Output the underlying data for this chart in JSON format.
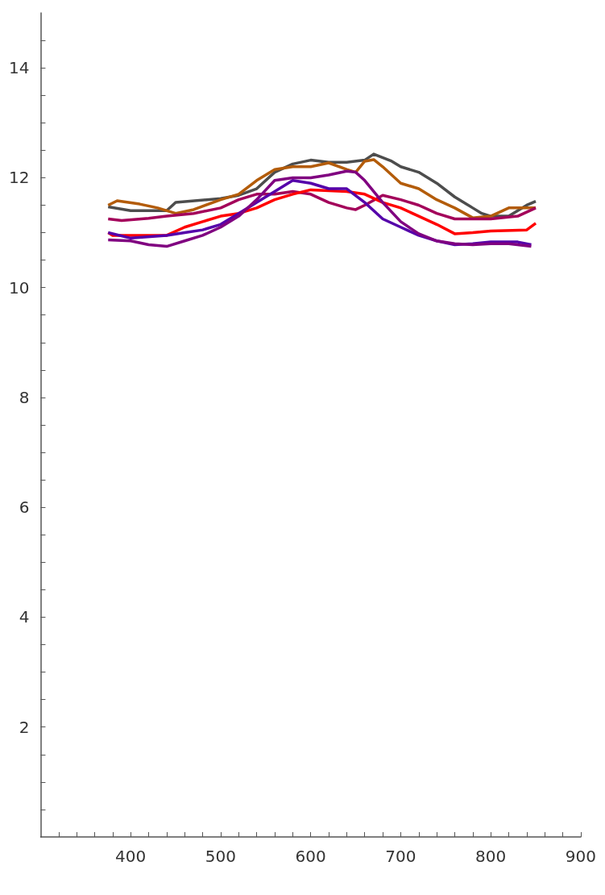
{
  "chart_data": {
    "type": "line",
    "xlim": [
      300,
      900
    ],
    "ylim": [
      0,
      15
    ],
    "xticks": [
      {
        "value": 320,
        "label": null
      },
      {
        "value": 340,
        "label": null
      },
      {
        "value": 360,
        "label": null
      },
      {
        "value": 380,
        "label": null
      },
      400,
      {
        "value": 420,
        "label": null
      },
      {
        "value": 440,
        "label": null
      },
      {
        "value": 460,
        "label": null
      },
      {
        "value": 480,
        "label": null
      },
      500,
      {
        "value": 520,
        "label": null
      },
      {
        "value": 540,
        "label": null
      },
      {
        "value": 560,
        "label": null
      },
      {
        "value": 580,
        "label": null
      },
      600,
      {
        "value": 620,
        "label": null
      },
      {
        "value": 640,
        "label": null
      },
      {
        "value": 660,
        "label": null
      },
      {
        "value": 680,
        "label": null
      },
      700,
      {
        "value": 720,
        "label": null
      },
      {
        "value": 740,
        "label": null
      },
      {
        "value": 760,
        "label": null
      },
      {
        "value": 780,
        "label": null
      },
      800,
      {
        "value": 820,
        "label": null
      },
      {
        "value": 840,
        "label": null
      },
      {
        "value": 860,
        "label": null
      },
      {
        "value": 880,
        "label": null
      },
      900
    ],
    "yticks": [
      {
        "value": 0.5,
        "label": null
      },
      {
        "value": 1,
        "label": null
      },
      {
        "value": 1.5,
        "label": null
      },
      2,
      {
        "value": 2.5,
        "label": null
      },
      {
        "value": 3,
        "label": null
      },
      {
        "value": 3.5,
        "label": null
      },
      4,
      {
        "value": 4.5,
        "label": null
      },
      {
        "value": 5,
        "label": null
      },
      {
        "value": 5.5,
        "label": null
      },
      6,
      {
        "value": 6.5,
        "label": null
      },
      {
        "value": 7,
        "label": null
      },
      {
        "value": 7.5,
        "label": null
      },
      8,
      {
        "value": 8.5,
        "label": null
      },
      {
        "value": 9,
        "label": null
      },
      {
        "value": 9.5,
        "label": null
      },
      10,
      {
        "value": 10.5,
        "label": null
      },
      {
        "value": 11,
        "label": null
      },
      {
        "value": 11.5,
        "label": null
      },
      12,
      {
        "value": 12.5,
        "label": null
      },
      {
        "value": 13,
        "label": null
      },
      {
        "value": 13.5,
        "label": null
      },
      14,
      {
        "value": 14.5,
        "label": null
      }
    ],
    "grid": false,
    "marker": "none",
    "line_style": "solid",
    "series": [
      {
        "color": "#4d4d4d",
        "x": [
          375,
          400,
          440,
          450,
          500,
          520,
          540,
          560,
          580,
          600,
          620,
          640,
          660,
          670,
          690,
          700,
          720,
          740,
          760,
          780,
          790,
          800,
          820,
          840,
          850
        ],
        "values": [
          11.47,
          11.4,
          11.4,
          11.55,
          11.62,
          11.68,
          11.8,
          12.1,
          12.25,
          12.32,
          12.28,
          12.28,
          12.32,
          12.43,
          12.3,
          12.2,
          12.1,
          11.9,
          11.65,
          11.45,
          11.35,
          11.3,
          11.3,
          11.5,
          11.57
        ]
      },
      {
        "color": "#b35c0a",
        "x": [
          375,
          385,
          410,
          430,
          450,
          470,
          500,
          520,
          540,
          560,
          580,
          600,
          620,
          640,
          650,
          660,
          670,
          680,
          700,
          720,
          740,
          760,
          780,
          800,
          820,
          850
        ],
        "values": [
          11.5,
          11.58,
          11.52,
          11.45,
          11.35,
          11.42,
          11.6,
          11.7,
          11.95,
          12.15,
          12.2,
          12.2,
          12.27,
          12.15,
          12.1,
          12.3,
          12.33,
          12.2,
          11.9,
          11.8,
          11.6,
          11.45,
          11.27,
          11.3,
          11.45,
          11.45
        ]
      },
      {
        "color": "#a3005a",
        "x": [
          375,
          390,
          420,
          440,
          470,
          500,
          520,
          540,
          560,
          580,
          600,
          620,
          640,
          650,
          660,
          680,
          700,
          720,
          740,
          760,
          800,
          830,
          850
        ],
        "values": [
          11.25,
          11.22,
          11.26,
          11.3,
          11.35,
          11.45,
          11.6,
          11.7,
          11.7,
          11.75,
          11.7,
          11.55,
          11.45,
          11.42,
          11.5,
          11.68,
          11.6,
          11.5,
          11.35,
          11.25,
          11.25,
          11.3,
          11.45
        ]
      },
      {
        "color": "#ff0000",
        "x": [
          375,
          380,
          440,
          460,
          480,
          500,
          520,
          540,
          560,
          580,
          600,
          640,
          660,
          680,
          700,
          720,
          740,
          760,
          780,
          800,
          840,
          850
        ],
        "values": [
          11.0,
          10.95,
          10.95,
          11.1,
          11.2,
          11.3,
          11.35,
          11.45,
          11.6,
          11.7,
          11.78,
          11.75,
          11.7,
          11.55,
          11.45,
          11.3,
          11.15,
          10.98,
          11.0,
          11.03,
          11.05,
          11.17
        ]
      },
      {
        "color": "#5500aa",
        "x": [
          375,
          400,
          440,
          460,
          480,
          500,
          520,
          540,
          560,
          580,
          600,
          620,
          640,
          660,
          680,
          700,
          720,
          740,
          760,
          780,
          800,
          830,
          845
        ],
        "values": [
          11.0,
          10.9,
          10.95,
          11.0,
          11.05,
          11.15,
          11.35,
          11.55,
          11.75,
          11.95,
          11.9,
          11.8,
          11.8,
          11.55,
          11.25,
          11.1,
          10.95,
          10.85,
          10.78,
          10.8,
          10.83,
          10.83,
          10.78
        ]
      },
      {
        "color": "#800080",
        "x": [
          375,
          400,
          420,
          440,
          460,
          480,
          500,
          520,
          540,
          560,
          580,
          600,
          620,
          640,
          650,
          660,
          680,
          700,
          720,
          740,
          760,
          780,
          800,
          820,
          845
        ],
        "values": [
          10.87,
          10.85,
          10.78,
          10.75,
          10.85,
          10.95,
          11.1,
          11.3,
          11.6,
          11.95,
          12.0,
          12.0,
          12.05,
          12.12,
          12.1,
          11.95,
          11.55,
          11.2,
          10.98,
          10.85,
          10.8,
          10.78,
          10.8,
          10.8,
          10.75
        ]
      }
    ]
  }
}
